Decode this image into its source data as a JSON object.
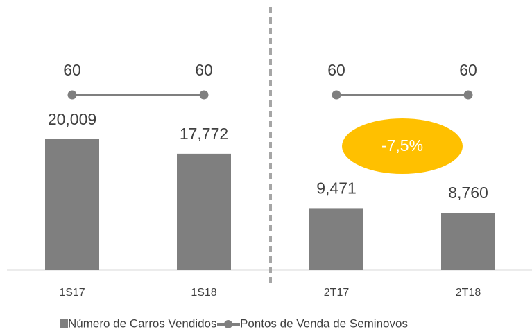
{
  "chart_data": {
    "type": "bar",
    "categories": [
      "1S17",
      "1S18",
      "2T17",
      "2T18"
    ],
    "series": [
      {
        "name": "Número de Carros Vendidos",
        "type": "bar",
        "color": "#7f7f7f",
        "values": [
          20009,
          17772,
          9471,
          8760
        ],
        "value_labels": [
          "20,009",
          "17,772",
          "9,471",
          "8,760"
        ]
      },
      {
        "name": "Pontos de Venda de Seminovos",
        "type": "line",
        "axis": "y2",
        "color": "#7f7f7f",
        "values": [
          60,
          60,
          60,
          60
        ]
      }
    ],
    "ylim": [
      0,
      37000
    ],
    "y2lim": [
      0,
      83
    ],
    "annotations": [
      {
        "text": "-7,5%",
        "color": "#ffc000"
      }
    ],
    "legend": "bottom"
  }
}
